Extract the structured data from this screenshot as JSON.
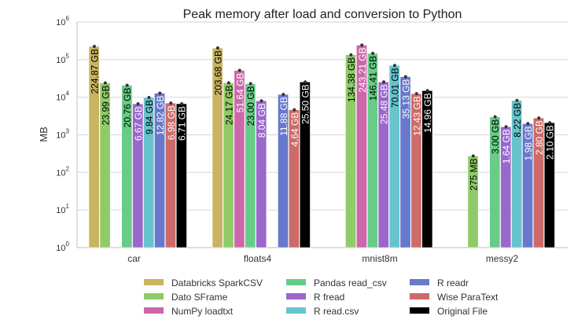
{
  "chart_data": {
    "type": "bar",
    "title": "Peak memory after load and conversion to Python",
    "xlabel": "",
    "ylabel": "MB",
    "yscale": "log",
    "ylim": [
      1,
      1000000
    ],
    "yticks": [
      {
        "base": "10",
        "exp": "0"
      },
      {
        "base": "10",
        "exp": "1"
      },
      {
        "base": "10",
        "exp": "2"
      },
      {
        "base": "10",
        "exp": "3"
      },
      {
        "base": "10",
        "exp": "4"
      },
      {
        "base": "10",
        "exp": "5"
      },
      {
        "base": "10",
        "exp": "6"
      }
    ],
    "grid": true,
    "legend_placement": "bottom",
    "categories": [
      "car",
      "floats4",
      "mnist8m",
      "messy2"
    ],
    "series": [
      {
        "name": "Databricks SparkCSV",
        "color": "#c9b461",
        "label_color": "#000000",
        "values": [
          224870,
          203680,
          null,
          null
        ],
        "labels": [
          "224.87 GB",
          "203.68 GB",
          null,
          null
        ]
      },
      {
        "name": "Dato SFrame",
        "color": "#8fcb67",
        "label_color": "#000000",
        "values": [
          23990,
          24170,
          134380,
          275
        ],
        "labels": [
          "23.99 GB",
          "24.17 GB",
          "134.38 GB",
          "275 MB"
        ]
      },
      {
        "name": "NumPy loadtxt",
        "color": "#cc67aa",
        "label_color": "#ffffff",
        "values": [
          null,
          51640,
          243210,
          null
        ],
        "labels": [
          null,
          "51.64 GB",
          "243.21 GB",
          null
        ]
      },
      {
        "name": "Pandas read_csv",
        "color": "#67cc87",
        "label_color": "#000000",
        "values": [
          20760,
          23000,
          146410,
          3000
        ],
        "labels": [
          "20.76 GB",
          "23.00 GB",
          "146.41 GB",
          "3.00 GB"
        ]
      },
      {
        "name": "R fread",
        "color": "#9a67cc",
        "label_color": "#ffffff",
        "values": [
          6670,
          8040,
          25480,
          1640
        ],
        "labels": [
          "6.67 GB",
          "8.04 GB",
          "25.48 GB",
          "1.64 GB"
        ]
      },
      {
        "name": "R read.csv",
        "color": "#67c3cc",
        "label_color": "#000000",
        "values": [
          9840,
          null,
          70010,
          8220
        ],
        "labels": [
          "9.84 GB",
          null,
          "70.01 GB",
          "8.22 GB"
        ]
      },
      {
        "name": "R readr",
        "color": "#6779cc",
        "label_color": "#ffffff",
        "values": [
          12820,
          11880,
          35130,
          1980
        ],
        "labels": [
          "12.82 GB",
          "11.88 GB",
          "35.13 GB",
          "1.98 GB"
        ]
      },
      {
        "name": "Wise ParaText",
        "color": "#cc6b67",
        "label_color": "#ffffff",
        "values": [
          6980,
          4640,
          12430,
          2800
        ],
        "labels": [
          "6.98 GB",
          "4.64 GB",
          "12.43 GB",
          "2.80 GB"
        ]
      },
      {
        "name": "Original File",
        "color": "#000000",
        "label_color": "#ffffff",
        "values": [
          6710,
          25500,
          14960,
          2100
        ],
        "labels": [
          "6.71 GB",
          "25.50 GB",
          "14.96 GB",
          "2.10 GB"
        ]
      }
    ]
  }
}
